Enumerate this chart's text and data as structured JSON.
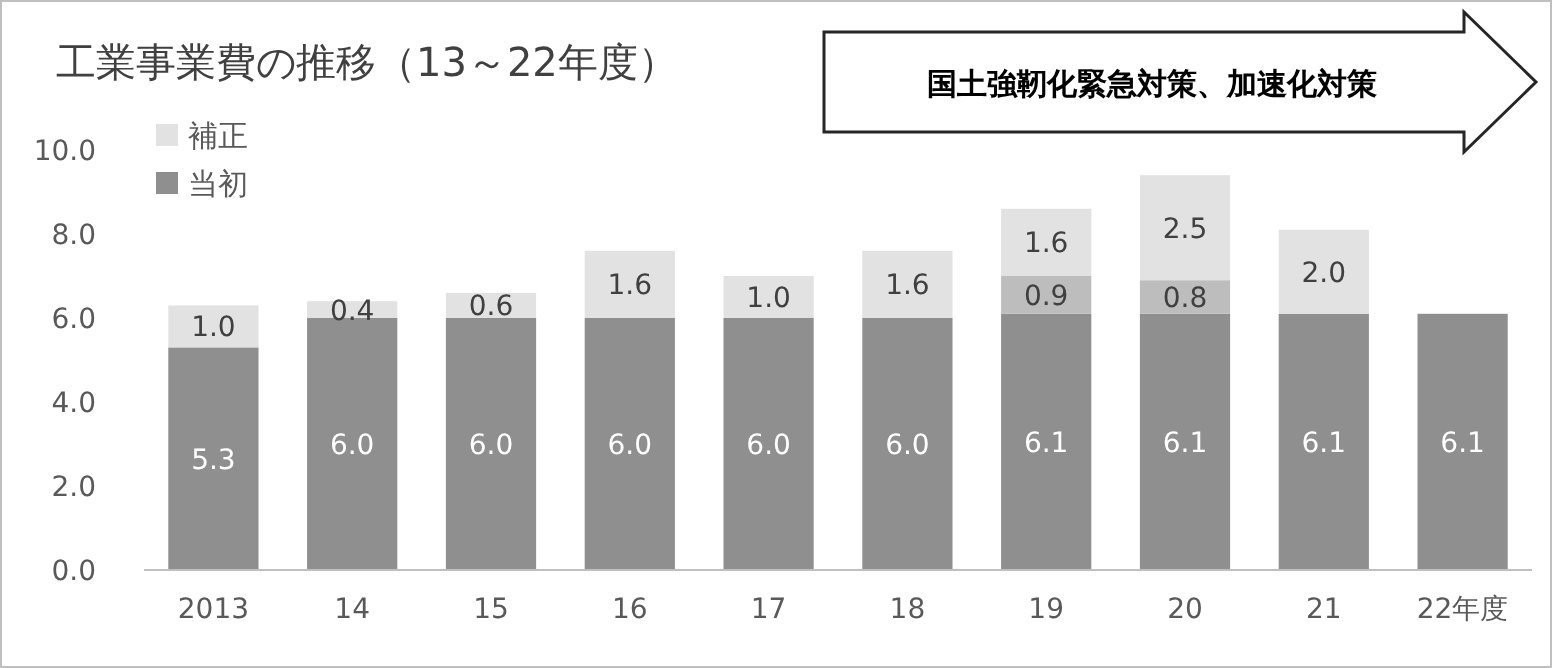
{
  "chart_data": {
    "type": "bar",
    "stacked": true,
    "title": "工業事業費の推移（13～22年度）",
    "categories": [
      "2013",
      "14",
      "15",
      "16",
      "17",
      "18",
      "19",
      "20",
      "21",
      "22年度"
    ],
    "series": [
      {
        "name": "当初",
        "color": "#8f8f8f",
        "values": [
          5.3,
          6.0,
          6.0,
          6.0,
          6.0,
          6.0,
          6.1,
          6.1,
          6.1,
          6.1
        ],
        "value_labels": [
          "5.3",
          "6.0",
          "6.0",
          "6.0",
          "6.0",
          "6.0",
          "6.1",
          "6.1",
          "6.1",
          "6.1"
        ]
      },
      {
        "color": "#bdbdbd",
        "values": [
          null,
          null,
          null,
          null,
          null,
          null,
          0.9,
          0.8,
          null,
          null
        ],
        "value_labels": [
          null,
          null,
          null,
          null,
          null,
          null,
          "0.9",
          "0.8",
          null,
          null
        ]
      },
      {
        "name": "補正",
        "color": "#e2e2e2",
        "values": [
          1.0,
          0.4,
          0.6,
          1.6,
          1.0,
          1.6,
          1.6,
          2.5,
          2.0,
          null
        ],
        "value_labels": [
          "1.0",
          "0.4",
          "0.6",
          "1.6",
          "1.0",
          "1.6",
          "1.6",
          "2.5",
          "2.0",
          null
        ]
      }
    ],
    "ylim": [
      0,
      10
    ],
    "yticks": [
      {
        "value": 0,
        "label": "0.0"
      },
      {
        "value": 2,
        "label": "2.0"
      },
      {
        "value": 4,
        "label": "4.0"
      },
      {
        "value": 6,
        "label": "6.0"
      },
      {
        "value": 8,
        "label": "8.0"
      },
      {
        "value": 10,
        "label": "10.0"
      }
    ],
    "legend": "top left",
    "annotations": [
      "国土強靭化緊急対策、加速化対策"
    ]
  }
}
